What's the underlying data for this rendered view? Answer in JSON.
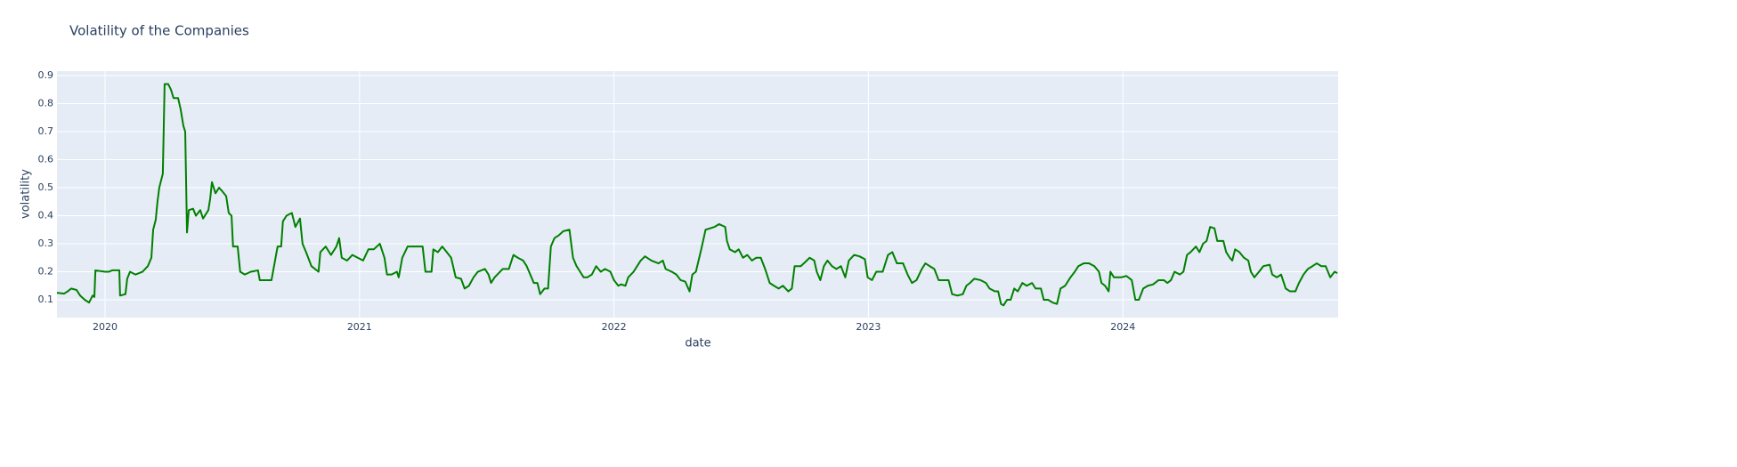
{
  "chart_data": {
    "type": "line",
    "title": "Volatility of the Companies",
    "xlabel": "date",
    "ylabel": "volatility",
    "color": "#008000",
    "grid": true,
    "xlim": [
      2019.811,
      2024.846
    ],
    "xticks": [
      2020,
      2021,
      2022,
      2023,
      2024
    ],
    "ylim": [
      0.0365,
      0.916
    ],
    "yticks": [
      0.1,
      0.2,
      0.3,
      0.4,
      0.5,
      0.6,
      0.7,
      0.8,
      0.9
    ],
    "x": [
      2019.811,
      2019.839,
      2019.853,
      2019.867,
      2019.888,
      2019.902,
      2019.92,
      2019.937,
      2019.951,
      2019.958,
      2019.962,
      2020.0,
      2020.014,
      2020.028,
      2020.056,
      2020.059,
      2020.08,
      2020.087,
      2020.098,
      2020.119,
      2020.147,
      2020.168,
      2020.182,
      2020.189,
      2020.199,
      2020.206,
      2020.213,
      2020.227,
      2020.234,
      2020.248,
      2020.259,
      2020.269,
      2020.287,
      2020.297,
      2020.308,
      2020.315,
      2020.322,
      2020.329,
      2020.346,
      2020.357,
      2020.374,
      2020.385,
      2020.406,
      2020.413,
      2020.42,
      2020.434,
      2020.448,
      2020.458,
      2020.476,
      2020.486,
      2020.497,
      2020.503,
      2020.521,
      2020.531,
      2020.549,
      2020.573,
      2020.601,
      2020.608,
      2020.626,
      2020.654,
      2020.664,
      2020.678,
      2020.692,
      2020.699,
      2020.713,
      2020.734,
      2020.748,
      2020.766,
      2020.776,
      2020.79,
      2020.811,
      2020.839,
      2020.846,
      2020.867,
      2020.888,
      2020.909,
      2020.92,
      2020.93,
      2020.951,
      2020.972,
      2020.993,
      2021.014,
      2021.035,
      2021.056,
      2021.08,
      2021.098,
      2021.108,
      2021.126,
      2021.147,
      2021.154,
      2021.168,
      2021.189,
      2021.203,
      2021.231,
      2021.248,
      2021.259,
      2021.283,
      2021.29,
      2021.308,
      2021.325,
      2021.343,
      2021.36,
      2021.378,
      2021.399,
      2021.413,
      2021.43,
      2021.448,
      2021.465,
      2021.493,
      2021.507,
      2021.517,
      2021.531,
      2021.563,
      2021.587,
      2021.605,
      2021.622,
      2021.643,
      2021.657,
      2021.671,
      2021.685,
      2021.699,
      2021.71,
      2021.727,
      2021.741,
      2021.752,
      2021.766,
      2021.783,
      2021.801,
      2021.825,
      2021.839,
      2021.853,
      2021.867,
      2021.881,
      2021.895,
      2021.913,
      2021.93,
      2021.948,
      2021.965,
      2021.986,
      2022.0,
      2022.017,
      2022.028,
      2022.045,
      2022.056,
      2022.077,
      2022.091,
      2022.105,
      2022.122,
      2022.147,
      2022.175,
      2022.192,
      2022.203,
      2022.227,
      2022.245,
      2022.262,
      2022.28,
      2022.297,
      2022.308,
      2022.322,
      2022.343,
      2022.36,
      2022.378,
      2022.395,
      2022.413,
      2022.437,
      2022.444,
      2022.455,
      2022.476,
      2022.49,
      2022.507,
      2022.524,
      2022.542,
      2022.559,
      2022.577,
      2022.594,
      2022.612,
      2022.629,
      2022.647,
      2022.664,
      2022.685,
      2022.699,
      2022.71,
      2022.734,
      2022.752,
      2022.769,
      2022.787,
      2022.797,
      2022.811,
      2022.825,
      2022.839,
      2022.857,
      2022.874,
      2022.892,
      2022.909,
      2022.923,
      2022.944,
      2022.965,
      2022.986,
      2022.997,
      2023.014,
      2023.031,
      2023.056,
      2023.077,
      2023.094,
      2023.112,
      2023.136,
      2023.154,
      2023.171,
      2023.189,
      2023.21,
      2023.224,
      2023.241,
      2023.259,
      2023.276,
      2023.294,
      2023.315,
      2023.329,
      2023.35,
      2023.371,
      2023.385,
      2023.399,
      2023.416,
      2023.441,
      2023.462,
      2023.476,
      2023.497,
      2023.51,
      2023.521,
      2023.531,
      2023.545,
      2023.559,
      2023.573,
      2023.587,
      2023.605,
      2023.622,
      2023.643,
      2023.657,
      2023.678,
      2023.689,
      2023.706,
      2023.724,
      2023.741,
      2023.755,
      2023.773,
      2023.794,
      2023.811,
      2023.825,
      2023.846,
      2023.867,
      2023.888,
      2023.906,
      2023.916,
      2023.93,
      2023.944,
      2023.951,
      2023.965,
      2023.993,
      2024.014,
      2024.035,
      2024.049,
      2024.063,
      2024.08,
      2024.098,
      2024.119,
      2024.14,
      2024.161,
      2024.175,
      2024.189,
      2024.203,
      2024.224,
      2024.238,
      2024.252,
      2024.266,
      2024.287,
      2024.301,
      2024.315,
      2024.329,
      2024.343,
      2024.36,
      2024.371,
      2024.395,
      2024.406,
      2024.42,
      2024.43,
      2024.441,
      2024.458,
      2024.476,
      2024.493,
      2024.503,
      2024.517,
      2024.535,
      2024.552,
      2024.577,
      2024.587,
      2024.605,
      2024.622,
      2024.64,
      2024.657,
      2024.678,
      2024.692,
      2024.71,
      2024.727,
      2024.745,
      2024.762,
      2024.78,
      2024.797,
      2024.815,
      2024.832,
      2024.843
    ],
    "values": [
      0.125,
      0.122,
      0.13,
      0.14,
      0.135,
      0.115,
      0.1,
      0.09,
      0.115,
      0.11,
      0.205,
      0.2,
      0.2,
      0.205,
      0.205,
      0.115,
      0.12,
      0.175,
      0.2,
      0.19,
      0.2,
      0.22,
      0.25,
      0.35,
      0.385,
      0.45,
      0.5,
      0.55,
      0.87,
      0.87,
      0.85,
      0.82,
      0.82,
      0.78,
      0.72,
      0.7,
      0.34,
      0.42,
      0.425,
      0.4,
      0.42,
      0.39,
      0.42,
      0.46,
      0.52,
      0.48,
      0.5,
      0.49,
      0.47,
      0.41,
      0.4,
      0.29,
      0.29,
      0.2,
      0.19,
      0.2,
      0.205,
      0.17,
      0.17,
      0.17,
      0.22,
      0.29,
      0.29,
      0.38,
      0.4,
      0.41,
      0.36,
      0.39,
      0.3,
      0.27,
      0.22,
      0.2,
      0.27,
      0.29,
      0.26,
      0.29,
      0.32,
      0.25,
      0.24,
      0.26,
      0.25,
      0.24,
      0.28,
      0.28,
      0.3,
      0.25,
      0.19,
      0.19,
      0.2,
      0.18,
      0.25,
      0.29,
      0.29,
      0.29,
      0.29,
      0.2,
      0.2,
      0.28,
      0.27,
      0.29,
      0.27,
      0.25,
      0.18,
      0.175,
      0.14,
      0.15,
      0.18,
      0.2,
      0.21,
      0.19,
      0.16,
      0.18,
      0.21,
      0.21,
      0.26,
      0.25,
      0.24,
      0.22,
      0.19,
      0.16,
      0.16,
      0.12,
      0.14,
      0.14,
      0.29,
      0.32,
      0.33,
      0.345,
      0.35,
      0.25,
      0.22,
      0.2,
      0.18,
      0.18,
      0.19,
      0.22,
      0.2,
      0.21,
      0.2,
      0.17,
      0.15,
      0.155,
      0.15,
      0.18,
      0.2,
      0.22,
      0.24,
      0.255,
      0.24,
      0.23,
      0.24,
      0.21,
      0.2,
      0.19,
      0.17,
      0.165,
      0.13,
      0.19,
      0.2,
      0.28,
      0.35,
      0.355,
      0.36,
      0.37,
      0.36,
      0.31,
      0.28,
      0.27,
      0.28,
      0.25,
      0.26,
      0.24,
      0.25,
      0.25,
      0.21,
      0.16,
      0.15,
      0.14,
      0.15,
      0.13,
      0.14,
      0.22,
      0.22,
      0.235,
      0.25,
      0.24,
      0.2,
      0.17,
      0.22,
      0.24,
      0.22,
      0.21,
      0.22,
      0.18,
      0.24,
      0.26,
      0.255,
      0.245,
      0.18,
      0.17,
      0.2,
      0.2,
      0.26,
      0.27,
      0.23,
      0.23,
      0.19,
      0.16,
      0.17,
      0.21,
      0.23,
      0.22,
      0.21,
      0.17,
      0.17,
      0.17,
      0.12,
      0.115,
      0.12,
      0.15,
      0.16,
      0.175,
      0.17,
      0.16,
      0.14,
      0.13,
      0.13,
      0.085,
      0.08,
      0.1,
      0.1,
      0.14,
      0.13,
      0.16,
      0.15,
      0.16,
      0.14,
      0.14,
      0.1,
      0.1,
      0.09,
      0.085,
      0.14,
      0.15,
      0.18,
      0.2,
      0.22,
      0.23,
      0.23,
      0.22,
      0.2,
      0.16,
      0.15,
      0.13,
      0.2,
      0.18,
      0.18,
      0.185,
      0.17,
      0.1,
      0.1,
      0.14,
      0.15,
      0.155,
      0.17,
      0.17,
      0.16,
      0.17,
      0.2,
      0.19,
      0.2,
      0.26,
      0.27,
      0.29,
      0.27,
      0.3,
      0.31,
      0.36,
      0.355,
      0.31,
      0.31,
      0.27,
      0.25,
      0.24,
      0.28,
      0.27,
      0.25,
      0.24,
      0.2,
      0.18,
      0.2,
      0.22,
      0.225,
      0.19,
      0.18,
      0.19,
      0.14,
      0.13,
      0.13,
      0.16,
      0.19,
      0.21,
      0.22,
      0.23,
      0.22,
      0.22,
      0.18,
      0.2,
      0.195
    ]
  }
}
